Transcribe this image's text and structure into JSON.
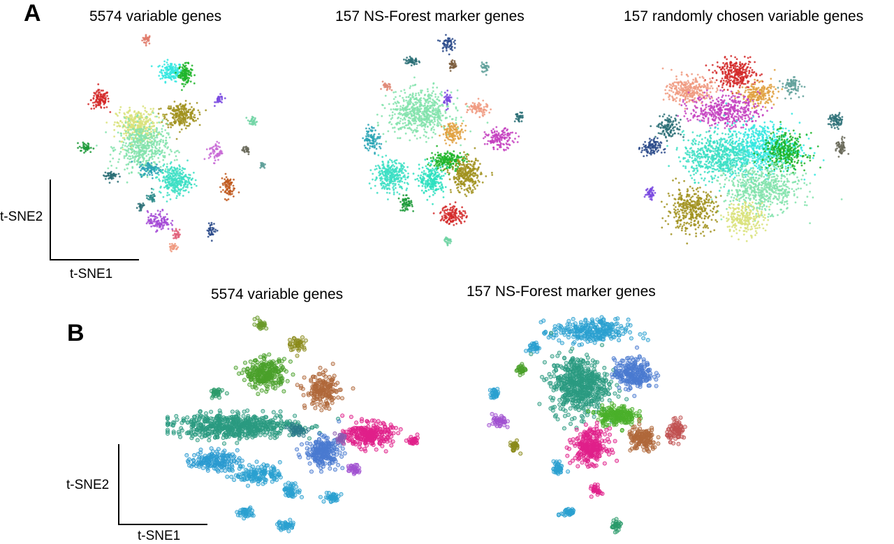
{
  "panel_A": {
    "letter": "A",
    "titles": [
      "5574 variable genes",
      "157 NS-Forest marker genes",
      "157 randomly chosen variable genes"
    ],
    "xlabel": "t-SNE1",
    "ylabel": "t-SNE2"
  },
  "panel_B": {
    "letter": "B",
    "titles": [
      "5574 variable genes",
      "157 NS-Forest marker genes"
    ],
    "xlabel": "t-SNE1",
    "ylabel": "t-SNE2"
  },
  "chart_data": [
    {
      "type": "scatter",
      "title": "5574 variable genes",
      "xlabel": "t-SNE1",
      "ylabel": "t-SNE2",
      "xlim": [
        0,
        100
      ],
      "ylim": [
        0,
        100
      ],
      "clusters": [
        {
          "cx": 38,
          "cy": 98,
          "rx": 2,
          "ry": 2,
          "n": 30,
          "color": "#e07a6a"
        },
        {
          "cx": 50,
          "cy": 83,
          "rx": 5,
          "ry": 4,
          "n": 160,
          "color": "#34e8e0"
        },
        {
          "cx": 57,
          "cy": 82,
          "rx": 3,
          "ry": 4,
          "n": 120,
          "color": "#1fb52a"
        },
        {
          "cx": 15,
          "cy": 70,
          "rx": 4,
          "ry": 4,
          "n": 120,
          "color": "#d42a2a"
        },
        {
          "cx": 74,
          "cy": 70,
          "rx": 2,
          "ry": 2,
          "n": 30,
          "color": "#7a4ae0"
        },
        {
          "cx": 55,
          "cy": 63,
          "rx": 7,
          "ry": 5,
          "n": 260,
          "color": "#a1921e"
        },
        {
          "cx": 33,
          "cy": 58,
          "rx": 9,
          "ry": 7,
          "n": 340,
          "color": "#d9e27a"
        },
        {
          "cx": 36,
          "cy": 48,
          "rx": 11,
          "ry": 10,
          "n": 500,
          "color": "#84e3ad"
        },
        {
          "cx": 90,
          "cy": 60,
          "rx": 2,
          "ry": 2,
          "n": 30,
          "color": "#6fd4a3"
        },
        {
          "cx": 8,
          "cy": 48,
          "rx": 3,
          "ry": 2,
          "n": 40,
          "color": "#1c9a38"
        },
        {
          "cx": 72,
          "cy": 46,
          "rx": 3,
          "ry": 4,
          "n": 60,
          "color": "#c86ad6"
        },
        {
          "cx": 87,
          "cy": 47,
          "rx": 2,
          "ry": 2,
          "n": 30,
          "color": "#6a6a5a"
        },
        {
          "cx": 95,
          "cy": 40,
          "rx": 1.5,
          "ry": 1.5,
          "n": 20,
          "color": "#5fa09a"
        },
        {
          "cx": 40,
          "cy": 38,
          "rx": 5,
          "ry": 3,
          "n": 100,
          "color": "#2aa5b5"
        },
        {
          "cx": 52,
          "cy": 33,
          "rx": 7,
          "ry": 6,
          "n": 300,
          "color": "#3ddfc4"
        },
        {
          "cx": 20,
          "cy": 35,
          "rx": 3,
          "ry": 2,
          "n": 50,
          "color": "#2a6e76"
        },
        {
          "cx": 78,
          "cy": 30,
          "rx": 3,
          "ry": 5,
          "n": 80,
          "color": "#c0581c"
        },
        {
          "cx": 40,
          "cy": 25,
          "rx": 2,
          "ry": 2,
          "n": 30,
          "color": "#2a8a8a"
        },
        {
          "cx": 35,
          "cy": 20,
          "rx": 2,
          "ry": 2,
          "n": 20,
          "color": "#2a6e76"
        },
        {
          "cx": 44,
          "cy": 14,
          "rx": 5,
          "ry": 4,
          "n": 120,
          "color": "#a44ad6"
        },
        {
          "cx": 70,
          "cy": 10,
          "rx": 2,
          "ry": 3,
          "n": 40,
          "color": "#2a4a8a"
        },
        {
          "cx": 53,
          "cy": 8,
          "rx": 2,
          "ry": 2,
          "n": 30,
          "color": "#e0607a"
        },
        {
          "cx": 51,
          "cy": 2,
          "rx": 2,
          "ry": 2,
          "n": 30,
          "color": "#f09a80"
        }
      ]
    },
    {
      "type": "scatter",
      "title": "157 NS-Forest marker genes",
      "xlabel": "",
      "ylabel": "",
      "xlim": [
        0,
        100
      ],
      "ylim": [
        0,
        100
      ],
      "clusters": [
        {
          "cx": 52,
          "cy": 96,
          "rx": 3,
          "ry": 3,
          "n": 60,
          "color": "#2a4a8a"
        },
        {
          "cx": 33,
          "cy": 88,
          "rx": 3,
          "ry": 2,
          "n": 50,
          "color": "#2a6e76"
        },
        {
          "cx": 55,
          "cy": 86,
          "rx": 2,
          "ry": 2,
          "n": 30,
          "color": "#7a5a3a"
        },
        {
          "cx": 72,
          "cy": 85,
          "rx": 2,
          "ry": 2,
          "n": 30,
          "color": "#5fa09a"
        },
        {
          "cx": 20,
          "cy": 76,
          "rx": 2,
          "ry": 2,
          "n": 30,
          "color": "#e08a78"
        },
        {
          "cx": 38,
          "cy": 64,
          "rx": 15,
          "ry": 9,
          "n": 620,
          "color": "#84e3ad"
        },
        {
          "cx": 52,
          "cy": 70,
          "rx": 2,
          "ry": 3,
          "n": 40,
          "color": "#7a4ae0"
        },
        {
          "cx": 68,
          "cy": 66,
          "rx": 5,
          "ry": 3,
          "n": 80,
          "color": "#f09a80"
        },
        {
          "cx": 90,
          "cy": 62,
          "rx": 2,
          "ry": 2,
          "n": 30,
          "color": "#2a6e76"
        },
        {
          "cx": 80,
          "cy": 52,
          "rx": 7,
          "ry": 4,
          "n": 140,
          "color": "#c440c0"
        },
        {
          "cx": 55,
          "cy": 55,
          "rx": 5,
          "ry": 4,
          "n": 120,
          "color": "#e0a040"
        },
        {
          "cx": 12,
          "cy": 52,
          "rx": 4,
          "ry": 5,
          "n": 100,
          "color": "#2aa5b5"
        },
        {
          "cx": 52,
          "cy": 42,
          "rx": 8,
          "ry": 4,
          "n": 200,
          "color": "#1fb52a"
        },
        {
          "cx": 22,
          "cy": 35,
          "rx": 8,
          "ry": 6,
          "n": 320,
          "color": "#3ddfc4"
        },
        {
          "cx": 44,
          "cy": 33,
          "rx": 6,
          "ry": 6,
          "n": 220,
          "color": "#2ee0c0"
        },
        {
          "cx": 62,
          "cy": 35,
          "rx": 7,
          "ry": 7,
          "n": 300,
          "color": "#a1921e"
        },
        {
          "cx": 30,
          "cy": 22,
          "rx": 3,
          "ry": 3,
          "n": 60,
          "color": "#1c9a38"
        },
        {
          "cx": 55,
          "cy": 17,
          "rx": 6,
          "ry": 4,
          "n": 140,
          "color": "#d42a2a"
        },
        {
          "cx": 52,
          "cy": 5,
          "rx": 2,
          "ry": 2,
          "n": 30,
          "color": "#6fd4a3"
        }
      ]
    },
    {
      "type": "scatter",
      "title": "157 randomly chosen variable genes",
      "xlabel": "",
      "ylabel": "",
      "xlim": [
        0,
        100
      ],
      "ylim": [
        0,
        100
      ],
      "clusters": [
        {
          "cx": 48,
          "cy": 88,
          "rx": 8,
          "ry": 6,
          "n": 300,
          "color": "#d42a2a"
        },
        {
          "cx": 27,
          "cy": 80,
          "rx": 9,
          "ry": 6,
          "n": 300,
          "color": "#f09a80"
        },
        {
          "cx": 58,
          "cy": 78,
          "rx": 7,
          "ry": 5,
          "n": 200,
          "color": "#e0a040"
        },
        {
          "cx": 73,
          "cy": 82,
          "rx": 4,
          "ry": 4,
          "n": 80,
          "color": "#5fa09a"
        },
        {
          "cx": 43,
          "cy": 70,
          "rx": 14,
          "ry": 7,
          "n": 420,
          "color": "#c440c0"
        },
        {
          "cx": 18,
          "cy": 62,
          "rx": 5,
          "ry": 5,
          "n": 120,
          "color": "#2a6e76"
        },
        {
          "cx": 93,
          "cy": 65,
          "rx": 3,
          "ry": 3,
          "n": 70,
          "color": "#2a6e76"
        },
        {
          "cx": 95,
          "cy": 52,
          "rx": 2,
          "ry": 4,
          "n": 60,
          "color": "#6a6a5a"
        },
        {
          "cx": 10,
          "cy": 52,
          "rx": 4,
          "ry": 4,
          "n": 100,
          "color": "#2a4a8a"
        },
        {
          "cx": 60,
          "cy": 52,
          "rx": 15,
          "ry": 11,
          "n": 650,
          "color": "#34e8e0"
        },
        {
          "cx": 40,
          "cy": 48,
          "rx": 14,
          "ry": 10,
          "n": 600,
          "color": "#3ddfc4"
        },
        {
          "cx": 70,
          "cy": 50,
          "rx": 9,
          "ry": 8,
          "n": 300,
          "color": "#1fb52a"
        },
        {
          "cx": 60,
          "cy": 32,
          "rx": 15,
          "ry": 10,
          "n": 600,
          "color": "#84e3ad"
        },
        {
          "cx": 52,
          "cy": 18,
          "rx": 8,
          "ry": 7,
          "n": 240,
          "color": "#d9e27a"
        },
        {
          "cx": 28,
          "cy": 22,
          "rx": 10,
          "ry": 9,
          "n": 380,
          "color": "#a1921e"
        },
        {
          "cx": 10,
          "cy": 30,
          "rx": 2,
          "ry": 3,
          "n": 50,
          "color": "#7a4ae0"
        }
      ]
    },
    {
      "type": "scatter",
      "title": "5574 variable genes",
      "xlabel": "t-SNE1",
      "ylabel": "t-SNE2",
      "xlim": [
        0,
        100
      ],
      "ylim": [
        0,
        100
      ],
      "clusters": [
        {
          "cx": 36,
          "cy": 97,
          "rx": 2,
          "ry": 2,
          "n": 30,
          "color": "#6a9a2a"
        },
        {
          "cx": 50,
          "cy": 88,
          "rx": 3,
          "ry": 3,
          "n": 40,
          "color": "#8a8a1a"
        },
        {
          "cx": 38,
          "cy": 74,
          "rx": 7,
          "ry": 6,
          "n": 260,
          "color": "#4aa02a"
        },
        {
          "cx": 60,
          "cy": 66,
          "rx": 6,
          "ry": 7,
          "n": 180,
          "color": "#b0683a"
        },
        {
          "cx": 19,
          "cy": 65,
          "rx": 2,
          "ry": 2,
          "n": 30,
          "color": "#2a9a6a"
        },
        {
          "cx": 26,
          "cy": 50,
          "rx": 22,
          "ry": 5,
          "n": 600,
          "color": "#2a9a80"
        },
        {
          "cx": 78,
          "cy": 46,
          "rx": 8,
          "ry": 5,
          "n": 260,
          "color": "#e0208a"
        },
        {
          "cx": 95,
          "cy": 43,
          "rx": 2,
          "ry": 2,
          "n": 30,
          "color": "#e0208a"
        },
        {
          "cx": 60,
          "cy": 38,
          "rx": 6,
          "ry": 6,
          "n": 220,
          "color": "#4a7ad0"
        },
        {
          "cx": 50,
          "cy": 48,
          "rx": 3,
          "ry": 2,
          "n": 40,
          "color": "#2a7a8a"
        },
        {
          "cx": 67,
          "cy": 44,
          "rx": 2,
          "ry": 2,
          "n": 30,
          "color": "#8a5ab0"
        },
        {
          "cx": 72,
          "cy": 30,
          "rx": 2,
          "ry": 2,
          "n": 30,
          "color": "#a050d0"
        },
        {
          "cx": 18,
          "cy": 34,
          "rx": 8,
          "ry": 4,
          "n": 160,
          "color": "#2a9ad0"
        },
        {
          "cx": 35,
          "cy": 28,
          "rx": 8,
          "ry": 4,
          "n": 140,
          "color": "#2aa0d0"
        },
        {
          "cx": 48,
          "cy": 20,
          "rx": 3,
          "ry": 3,
          "n": 50,
          "color": "#2aa0d0"
        },
        {
          "cx": 64,
          "cy": 17,
          "rx": 3,
          "ry": 2,
          "n": 40,
          "color": "#2aa0d0"
        },
        {
          "cx": 30,
          "cy": 10,
          "rx": 3,
          "ry": 2,
          "n": 40,
          "color": "#2aa0d0"
        },
        {
          "cx": 46,
          "cy": 4,
          "rx": 3,
          "ry": 2,
          "n": 40,
          "color": "#2aa0d0"
        }
      ]
    },
    {
      "type": "scatter",
      "title": "157 NS-Forest marker genes",
      "xlabel": "",
      "ylabel": "",
      "xlim": [
        0,
        100
      ],
      "ylim": [
        0,
        100
      ],
      "clusters": [
        {
          "cx": 50,
          "cy": 92,
          "rx": 16,
          "ry": 5,
          "n": 260,
          "color": "#2aa0d0"
        },
        {
          "cx": 24,
          "cy": 85,
          "rx": 2,
          "ry": 2,
          "n": 30,
          "color": "#2aa0d0"
        },
        {
          "cx": 18,
          "cy": 75,
          "rx": 2,
          "ry": 2,
          "n": 30,
          "color": "#4aa02a"
        },
        {
          "cx": 45,
          "cy": 68,
          "rx": 12,
          "ry": 12,
          "n": 560,
          "color": "#2a9a80"
        },
        {
          "cx": 70,
          "cy": 73,
          "rx": 8,
          "ry": 6,
          "n": 240,
          "color": "#4a7ad0"
        },
        {
          "cx": 6,
          "cy": 64,
          "rx": 2,
          "ry": 2,
          "n": 30,
          "color": "#2aa0d0"
        },
        {
          "cx": 62,
          "cy": 54,
          "rx": 8,
          "ry": 4,
          "n": 200,
          "color": "#4ab02a"
        },
        {
          "cx": 8,
          "cy": 51,
          "rx": 3,
          "ry": 3,
          "n": 40,
          "color": "#a050d0"
        },
        {
          "cx": 90,
          "cy": 47,
          "rx": 4,
          "ry": 4,
          "n": 80,
          "color": "#c05050"
        },
        {
          "cx": 74,
          "cy": 43,
          "rx": 6,
          "ry": 5,
          "n": 140,
          "color": "#b0683a"
        },
        {
          "cx": 50,
          "cy": 40,
          "rx": 7,
          "ry": 7,
          "n": 260,
          "color": "#e0208a"
        },
        {
          "cx": 15,
          "cy": 40,
          "rx": 2,
          "ry": 2,
          "n": 30,
          "color": "#8a8a1a"
        },
        {
          "cx": 35,
          "cy": 30,
          "rx": 2,
          "ry": 3,
          "n": 40,
          "color": "#2aa0d0"
        },
        {
          "cx": 53,
          "cy": 20,
          "rx": 2,
          "ry": 2,
          "n": 30,
          "color": "#e0208a"
        },
        {
          "cx": 40,
          "cy": 10,
          "rx": 3,
          "ry": 2,
          "n": 40,
          "color": "#2aa0d0"
        },
        {
          "cx": 62,
          "cy": 4,
          "rx": 2,
          "ry": 2,
          "n": 30,
          "color": "#2a9a6a"
        }
      ]
    }
  ]
}
